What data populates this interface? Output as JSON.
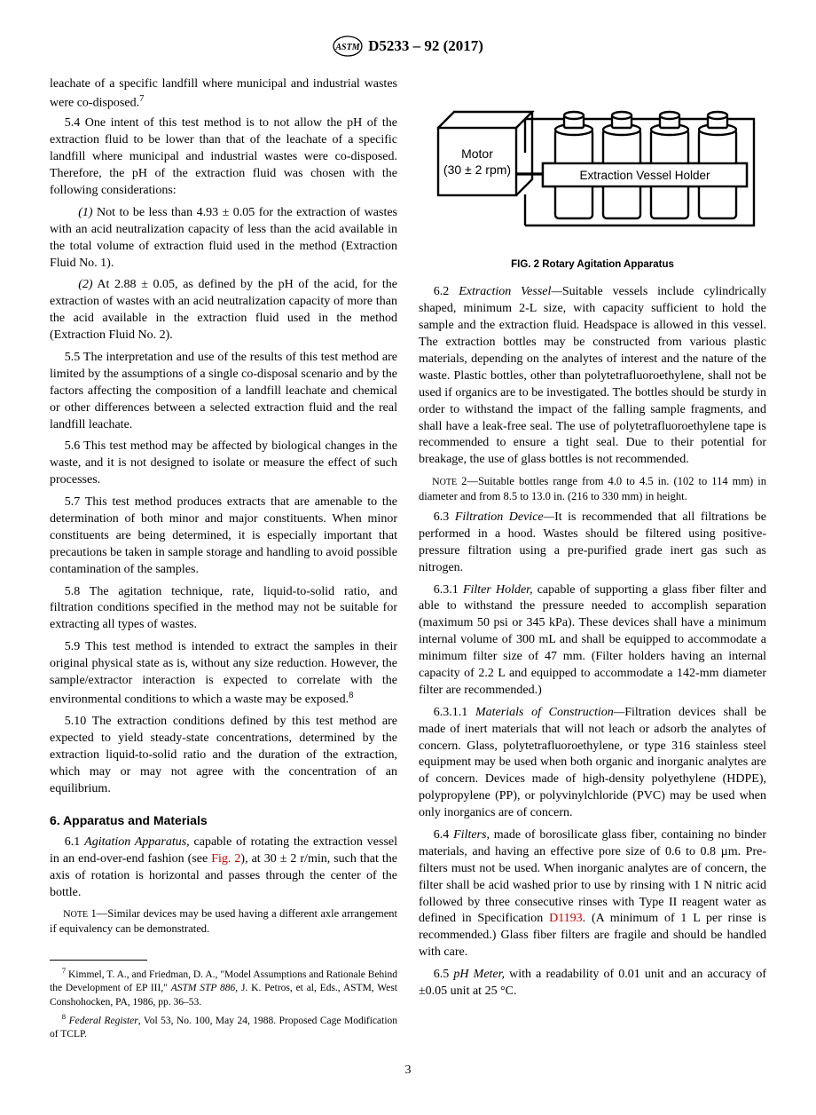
{
  "header": {
    "designation": "D5233 – 92 (2017)"
  },
  "left": {
    "p_cont": "leachate of a specific landfill where municipal and industrial wastes were co-disposed.",
    "p_cont_sup": "7",
    "s54": "5.4 One intent of this test method is to not allow the pH of the extraction fluid to be lower than that of the leachate of a specific landfill where municipal and industrial wastes were co-disposed. Therefore, the pH of the extraction fluid was chosen with the following considerations:",
    "s54_1": "(1) Not to be less than 4.93 ± 0.05 for the extraction of wastes with an acid neutralization capacity of less than the acid available in the total volume of extraction fluid used in the method (Extraction Fluid No. 1).",
    "s54_2": "(2) At 2.88 ± 0.05, as defined by the pH of the acid, for the extraction of wastes with an acid neutralization capacity of more than the acid available in the extraction fluid used in the method (Extraction Fluid No. 2).",
    "s55": "5.5 The interpretation and use of the results of this test method are limited by the assumptions of a single co-disposal scenario and by the factors affecting the composition of a landfill leachate and chemical or other differences between a selected extraction fluid and the real landfill leachate.",
    "s56": "5.6 This test method may be affected by biological changes in the waste, and it is not designed to isolate or measure the effect of such processes.",
    "s57": "5.7 This test method produces extracts that are amenable to the determination of both minor and major constituents. When minor constituents are being determined, it is especially important that precautions be taken in sample storage and handling to avoid possible contamination of the samples.",
    "s58": "5.8 The agitation technique, rate, liquid-to-solid ratio, and filtration conditions specified in the method may not be suitable for extracting all types of wastes.",
    "s59a": "5.9 This test method is intended to extract the samples in their original physical state as is, without any size reduction. However, the sample/extractor interaction is expected to correlate with the environmental conditions to which a waste may be exposed.",
    "s59_sup": "8",
    "s510": "5.10 The extraction conditions defined by this test method are expected to yield steady-state concentrations, determined by the extraction liquid-to-solid ratio and the duration of the extraction, which may or may not agree with the concentration of an equilibrium.",
    "sec6_title": "6.  Apparatus and Materials",
    "s61a": "6.1 ",
    "s61_lead": "Agitation Apparatus,",
    "s61b": " capable of rotating the extraction vessel in an end-over-end fashion (see ",
    "s61_figref": "Fig. 2",
    "s61c": "), at 30 ± 2 r/min, such that the axis of rotation is horizontal and passes through the center of the bottle.",
    "note1_lead": "Note 1—",
    "note1": "Similar devices may be used having a different axle arrangement if equivalency can be demonstrated.",
    "fn7_sup": "7",
    "fn7": " Kimmel, T. A., and Friedman, D. A., \"Model Assumptions and Rationale Behind the Development of EP III,\" ASTM STP 886, J. K. Petros, et al, Eds., ASTM, West Conshohocken, PA, 1986, pp. 36–53.",
    "fn8_sup": "8",
    "fn8": " Federal Register, Vol 53, No. 100, May 24, 1988. Proposed Cage Modification of TCLP."
  },
  "right": {
    "fig": {
      "motor_label1": "Motor",
      "motor_label2": "(30 ± 2 rpm)",
      "holder_label": "Extraction Vessel Holder",
      "caption": "FIG. 2  Rotary Agitation Apparatus"
    },
    "s62a": "6.2 ",
    "s62_lead": "Extraction Vessel—",
    "s62b": "Suitable vessels include cylindrically shaped, minimum 2-L size, with capacity sufficient to hold the sample and the extraction fluid. Headspace is allowed in this vessel. The extraction bottles may be constructed from various plastic materials, depending on the analytes of interest and the nature of the waste. Plastic bottles, other than polytetrafluoroethylene, shall not be used if organics are to be investigated. The bottles should be sturdy in order to withstand the impact of the falling sample fragments, and shall have a leak-free seal. The use of polytetrafluoroethylene tape is recommended to ensure a tight seal. Due to their potential for breakage, the use of glass bottles is not recommended.",
    "note2_lead": "Note 2—",
    "note2": "Suitable bottles range from 4.0 to 4.5 in. (102 to 114 mm) in diameter and from 8.5 to 13.0 in. (216 to 330 mm) in height.",
    "s63a": "6.3 ",
    "s63_lead": "Filtration Device—",
    "s63b": "It is recommended that all filtrations be performed in a hood. Wastes should be filtered using positive-pressure filtration using a pre-purified grade inert gas such as nitrogen.",
    "s631a": "6.3.1 ",
    "s631_lead": "Filter Holder,",
    "s631b": " capable of supporting a glass fiber filter and able to withstand the pressure needed to accomplish separation (maximum 50 psi or 345 kPa). These devices shall have a minimum internal volume of 300 mL and shall be equipped to accommodate a minimum filter size of 47 mm. (Filter holders having an internal capacity of 2.2 L and equipped to accommodate a 142-mm diameter filter are recommended.)",
    "s6311a": "6.3.1.1 ",
    "s6311_lead": "Materials of Construction—",
    "s6311b": "Filtration devices shall be made of inert materials that will not leach or adsorb the analytes of concern. Glass, polytetrafluoroethylene, or type 316 stainless steel equipment may be used when both organic and inorganic analytes are of concern. Devices made of high-density polyethylene (HDPE), polypropylene (PP), or polyvinylchloride (PVC) may be used when only inorganics are of concern.",
    "s64a": "6.4 ",
    "s64_lead": "Filters,",
    "s64b": " made of borosilicate glass fiber, containing no binder materials, and having an effective pore size of 0.6 to 0.8 µm. Pre-filters must not be used. When inorganic analytes are of concern, the filter shall be acid washed prior to use by rinsing with 1 N nitric acid followed by three consecutive rinses with Type II reagent water as defined in Specification ",
    "s64_ref": "D1193",
    "s64c": ". (A minimum of 1 L per rinse is recommended.) Glass fiber filters are fragile and should be handled with care.",
    "s65a": "6.5 ",
    "s65_lead": "pH Meter,",
    "s65b": " with a readability of 0.01 unit and an accuracy of ±0.05 unit at 25 °C."
  },
  "pagenum": "3"
}
